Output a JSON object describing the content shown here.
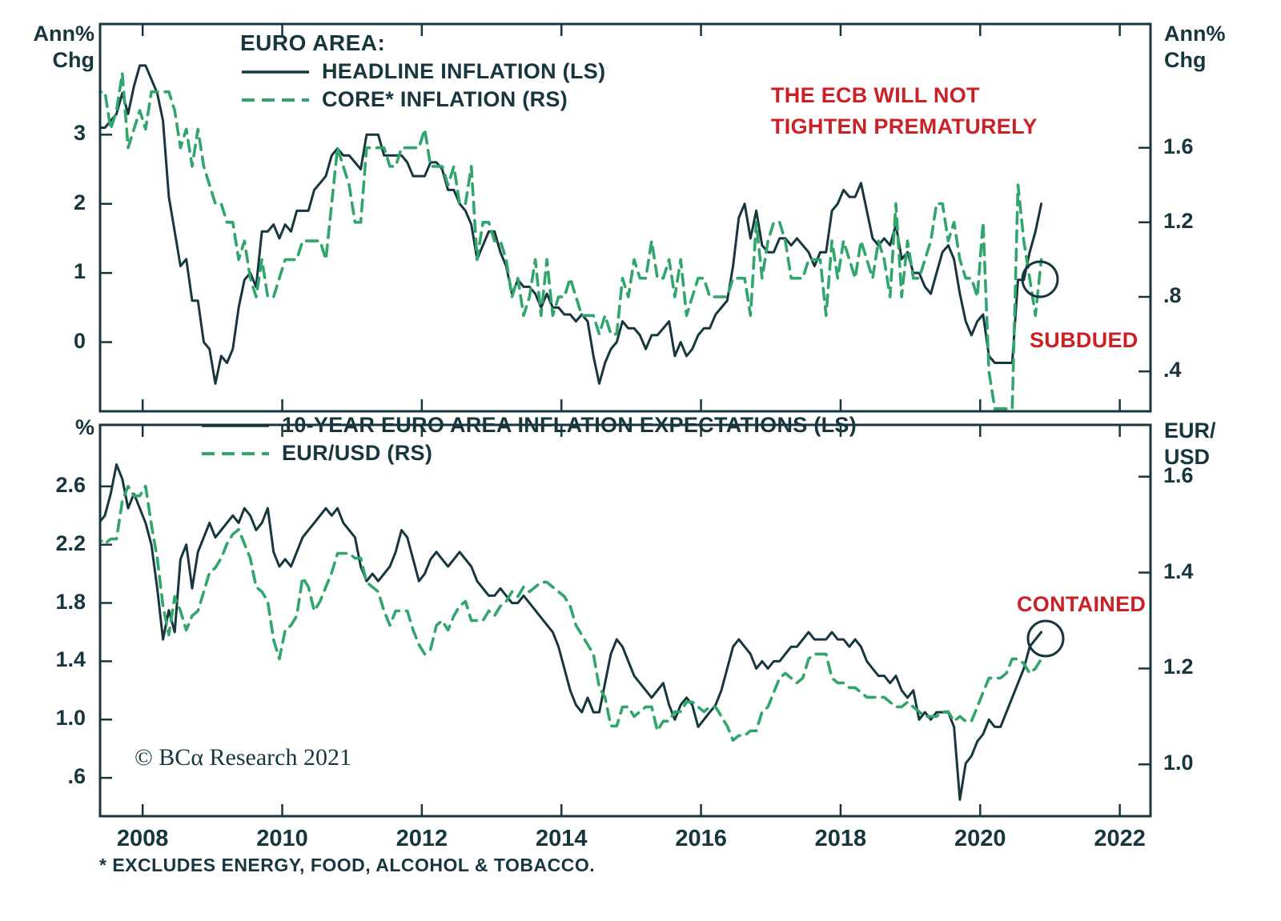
{
  "colors": {
    "navy_line": "#17363e",
    "green_line": "#30a56c",
    "red_annotation": "#cb2026",
    "background": "#ffffff"
  },
  "annotations": {
    "ecb_note": "THE ECB WILL NOT\nTIGHTEN PREMATURELY",
    "subdued": "SUBDUED",
    "contained": "CONTAINED",
    "copyright": "© BCα Research 2021",
    "footnote": "* EXCLUDES ENERGY, FOOD, ALCOHOL & TOBACCO."
  },
  "chart_data": [
    {
      "type": "line",
      "title": "EURO AREA:",
      "left_axis": {
        "title": "Ann%\nChg",
        "ticks": [
          "0",
          "1",
          "2",
          "3"
        ],
        "range": [
          -1.0,
          4.6
        ]
      },
      "right_axis": {
        "title": "Ann%\nChg",
        "ticks": [
          ".4",
          ".8",
          "1.2",
          "1.6"
        ],
        "range": [
          0.186,
          2.264
        ]
      },
      "x_axis": {
        "ticks": [
          "2008",
          "2010",
          "2012",
          "2014",
          "2016",
          "2018",
          "2020",
          "2022"
        ],
        "range": [
          2007.89,
          2022.94
        ]
      },
      "series": [
        {
          "name": "HEADLINE INFLATION (LS)",
          "axis": "left",
          "style": "solid",
          "start_year": 2007.542,
          "step_years": 0.083333,
          "values": [
            1.8,
            1.7,
            2.1,
            2.6,
            3.1,
            3.1,
            3.2,
            3.3,
            3.6,
            3.3,
            3.7,
            4.0,
            4.0,
            3.8,
            3.6,
            3.2,
            2.1,
            1.6,
            1.1,
            1.2,
            0.6,
            0.6,
            0.0,
            -0.1,
            -0.6,
            -0.2,
            -0.3,
            -0.1,
            0.5,
            0.9,
            1.0,
            0.8,
            1.6,
            1.6,
            1.7,
            1.5,
            1.7,
            1.6,
            1.9,
            1.9,
            1.9,
            2.2,
            2.3,
            2.4,
            2.7,
            2.8,
            2.7,
            2.7,
            2.6,
            2.5,
            3.0,
            3.0,
            3.0,
            2.7,
            2.7,
            2.7,
            2.7,
            2.6,
            2.4,
            2.4,
            2.4,
            2.6,
            2.6,
            2.5,
            2.2,
            2.2,
            2.0,
            1.9,
            1.7,
            1.2,
            1.4,
            1.6,
            1.6,
            1.3,
            1.1,
            0.7,
            0.9,
            0.8,
            0.8,
            0.7,
            0.5,
            0.7,
            0.5,
            0.5,
            0.4,
            0.4,
            0.3,
            0.4,
            0.3,
            -0.2,
            -0.6,
            -0.3,
            -0.1,
            0.0,
            0.3,
            0.2,
            0.2,
            0.1,
            -0.1,
            0.1,
            0.1,
            0.2,
            0.3,
            -0.2,
            0.0,
            -0.2,
            -0.1,
            0.1,
            0.2,
            0.2,
            0.4,
            0.5,
            0.6,
            1.1,
            1.8,
            2.0,
            1.5,
            1.9,
            1.4,
            1.3,
            1.3,
            1.5,
            1.5,
            1.4,
            1.5,
            1.4,
            1.3,
            1.1,
            1.3,
            1.3,
            1.9,
            2.0,
            2.2,
            2.1,
            2.1,
            2.3,
            1.9,
            1.5,
            1.4,
            1.5,
            1.4,
            1.7,
            1.2,
            1.3,
            1.0,
            1.0,
            0.8,
            0.7,
            1.0,
            1.3,
            1.4,
            1.2,
            0.7,
            0.3,
            0.1,
            0.3,
            0.4,
            -0.2,
            -0.3,
            -0.3,
            -0.3,
            -0.3,
            0.9,
            0.9,
            1.3,
            1.6,
            2.0
          ]
        },
        {
          "name": "CORE* INFLATION (RS)",
          "axis": "right",
          "style": "dashed",
          "start_year": 2007.542,
          "step_years": 0.083333,
          "values": [
            1.9,
            1.9,
            2.0,
            2.1,
            1.9,
            1.9,
            1.7,
            1.8,
            2.0,
            1.6,
            1.7,
            1.8,
            1.7,
            1.9,
            1.9,
            1.9,
            1.9,
            1.8,
            1.6,
            1.7,
            1.5,
            1.7,
            1.5,
            1.4,
            1.3,
            1.3,
            1.2,
            1.2,
            1.0,
            1.1,
            0.9,
            0.8,
            1.0,
            0.8,
            0.8,
            0.9,
            1.0,
            1.0,
            1.0,
            1.1,
            1.1,
            1.1,
            1.1,
            1.0,
            1.3,
            1.6,
            1.5,
            1.4,
            1.2,
            1.2,
            1.6,
            1.6,
            1.6,
            1.6,
            1.5,
            1.5,
            1.6,
            1.6,
            1.6,
            1.6,
            1.7,
            1.5,
            1.5,
            1.5,
            1.4,
            1.5,
            1.3,
            1.3,
            1.5,
            1.0,
            1.2,
            1.2,
            1.1,
            1.1,
            1.0,
            0.8,
            0.9,
            0.7,
            0.8,
            1.0,
            0.7,
            1.0,
            0.7,
            0.8,
            0.8,
            0.9,
            0.8,
            0.7,
            0.7,
            0.7,
            0.6,
            0.7,
            0.6,
            0.6,
            0.9,
            0.8,
            1.0,
            0.9,
            0.9,
            1.1,
            0.9,
            0.9,
            1.0,
            0.8,
            1.0,
            0.7,
            0.8,
            0.9,
            0.9,
            0.8,
            0.8,
            0.8,
            0.8,
            0.9,
            0.9,
            0.9,
            0.7,
            1.2,
            0.9,
            1.1,
            1.2,
            1.2,
            1.1,
            0.9,
            0.9,
            0.9,
            1.0,
            1.0,
            1.0,
            0.7,
            1.1,
            0.9,
            1.1,
            1.0,
            0.9,
            1.1,
            1.0,
            0.9,
            1.1,
            1.0,
            0.8,
            1.3,
            0.8,
            1.1,
            0.9,
            0.9,
            1.0,
            1.1,
            1.3,
            1.3,
            1.1,
            1.2,
            1.0,
            0.9,
            0.9,
            0.8,
            1.2,
            0.4,
            0.2,
            0.2,
            0.2,
            0.2,
            1.4,
            1.1,
            0.9,
            0.7,
            1.0
          ]
        }
      ]
    },
    {
      "type": "line",
      "title": "",
      "left_axis": {
        "title": "%",
        "ticks": [
          ".6",
          "1.0",
          "1.4",
          "1.8",
          "2.2",
          "2.6"
        ],
        "range": [
          0.337,
          3.022
        ]
      },
      "right_axis": {
        "title": "EUR/\nUSD",
        "ticks": [
          "1.0",
          "1.2",
          "1.4",
          "1.6"
        ],
        "range": [
          0.892,
          1.708
        ]
      },
      "x_axis": {
        "ticks": [
          "2008",
          "2010",
          "2012",
          "2014",
          "2016",
          "2018",
          "2020",
          "2022"
        ],
        "range": [
          2007.89,
          2022.94
        ]
      },
      "series": [
        {
          "name": "10-YEAR EURO AREA INFLATION EXPECTATIONS (LS)",
          "axis": "left",
          "style": "solid",
          "start_year": 2007.542,
          "step_years": 0.083333,
          "values": [
            2.35,
            2.3,
            2.4,
            2.45,
            2.35,
            2.4,
            2.55,
            2.75,
            2.65,
            2.45,
            2.55,
            2.45,
            2.35,
            2.2,
            1.9,
            1.55,
            1.75,
            1.6,
            2.1,
            2.2,
            1.9,
            2.15,
            2.25,
            2.35,
            2.25,
            2.3,
            2.35,
            2.4,
            2.35,
            2.45,
            2.4,
            2.3,
            2.35,
            2.45,
            2.15,
            2.05,
            2.1,
            2.05,
            2.15,
            2.25,
            2.3,
            2.35,
            2.4,
            2.45,
            2.4,
            2.45,
            2.35,
            2.3,
            2.25,
            2.05,
            1.95,
            2.0,
            1.95,
            2.0,
            2.05,
            2.15,
            2.3,
            2.25,
            2.1,
            1.95,
            2.0,
            2.1,
            2.15,
            2.1,
            2.05,
            2.1,
            2.15,
            2.1,
            2.05,
            1.95,
            1.9,
            1.85,
            1.85,
            1.9,
            1.85,
            1.8,
            1.8,
            1.85,
            1.8,
            1.75,
            1.7,
            1.65,
            1.6,
            1.5,
            1.35,
            1.2,
            1.1,
            1.05,
            1.15,
            1.05,
            1.05,
            1.25,
            1.45,
            1.55,
            1.5,
            1.4,
            1.3,
            1.25,
            1.2,
            1.15,
            1.2,
            1.25,
            1.1,
            1.0,
            1.1,
            1.15,
            1.1,
            0.95,
            1.0,
            1.05,
            1.1,
            1.2,
            1.35,
            1.5,
            1.55,
            1.5,
            1.45,
            1.35,
            1.4,
            1.35,
            1.4,
            1.4,
            1.45,
            1.5,
            1.5,
            1.55,
            1.6,
            1.55,
            1.55,
            1.55,
            1.6,
            1.55,
            1.55,
            1.5,
            1.55,
            1.5,
            1.4,
            1.35,
            1.3,
            1.3,
            1.25,
            1.3,
            1.2,
            1.15,
            1.2,
            1.0,
            1.05,
            1.0,
            1.05,
            1.05,
            1.05,
            0.95,
            0.45,
            0.7,
            0.75,
            0.85,
            0.9,
            1.0,
            0.95,
            0.95,
            1.05,
            1.15,
            1.25,
            1.35,
            1.5,
            1.55,
            1.6
          ]
        },
        {
          "name": "EUR/USD (RS)",
          "axis": "right",
          "style": "dashed",
          "start_year": 2007.542,
          "step_years": 0.083333,
          "values": [
            1.37,
            1.36,
            1.39,
            1.42,
            1.47,
            1.46,
            1.47,
            1.47,
            1.55,
            1.58,
            1.56,
            1.56,
            1.58,
            1.5,
            1.43,
            1.33,
            1.27,
            1.35,
            1.32,
            1.28,
            1.31,
            1.32,
            1.36,
            1.4,
            1.41,
            1.43,
            1.46,
            1.48,
            1.49,
            1.46,
            1.43,
            1.37,
            1.36,
            1.34,
            1.26,
            1.22,
            1.28,
            1.29,
            1.31,
            1.39,
            1.37,
            1.32,
            1.34,
            1.37,
            1.4,
            1.44,
            1.44,
            1.44,
            1.43,
            1.43,
            1.38,
            1.37,
            1.36,
            1.32,
            1.29,
            1.32,
            1.32,
            1.32,
            1.28,
            1.25,
            1.23,
            1.24,
            1.29,
            1.3,
            1.28,
            1.31,
            1.33,
            1.34,
            1.3,
            1.3,
            1.3,
            1.32,
            1.31,
            1.33,
            1.34,
            1.36,
            1.35,
            1.37,
            1.36,
            1.37,
            1.38,
            1.38,
            1.37,
            1.36,
            1.35,
            1.33,
            1.29,
            1.27,
            1.25,
            1.23,
            1.16,
            1.14,
            1.08,
            1.08,
            1.12,
            1.12,
            1.1,
            1.11,
            1.12,
            1.12,
            1.07,
            1.09,
            1.09,
            1.11,
            1.11,
            1.13,
            1.13,
            1.12,
            1.11,
            1.12,
            1.12,
            1.1,
            1.08,
            1.05,
            1.06,
            1.06,
            1.07,
            1.07,
            1.11,
            1.12,
            1.15,
            1.18,
            1.19,
            1.18,
            1.17,
            1.18,
            1.22,
            1.23,
            1.23,
            1.23,
            1.18,
            1.17,
            1.17,
            1.16,
            1.16,
            1.15,
            1.14,
            1.14,
            1.14,
            1.14,
            1.13,
            1.12,
            1.12,
            1.13,
            1.12,
            1.11,
            1.1,
            1.1,
            1.1,
            1.11,
            1.11,
            1.09,
            1.1,
            1.09,
            1.09,
            1.12,
            1.15,
            1.18,
            1.18,
            1.18,
            1.19,
            1.22,
            1.22,
            1.21,
            1.19,
            1.2,
            1.22
          ]
        }
      ]
    }
  ]
}
